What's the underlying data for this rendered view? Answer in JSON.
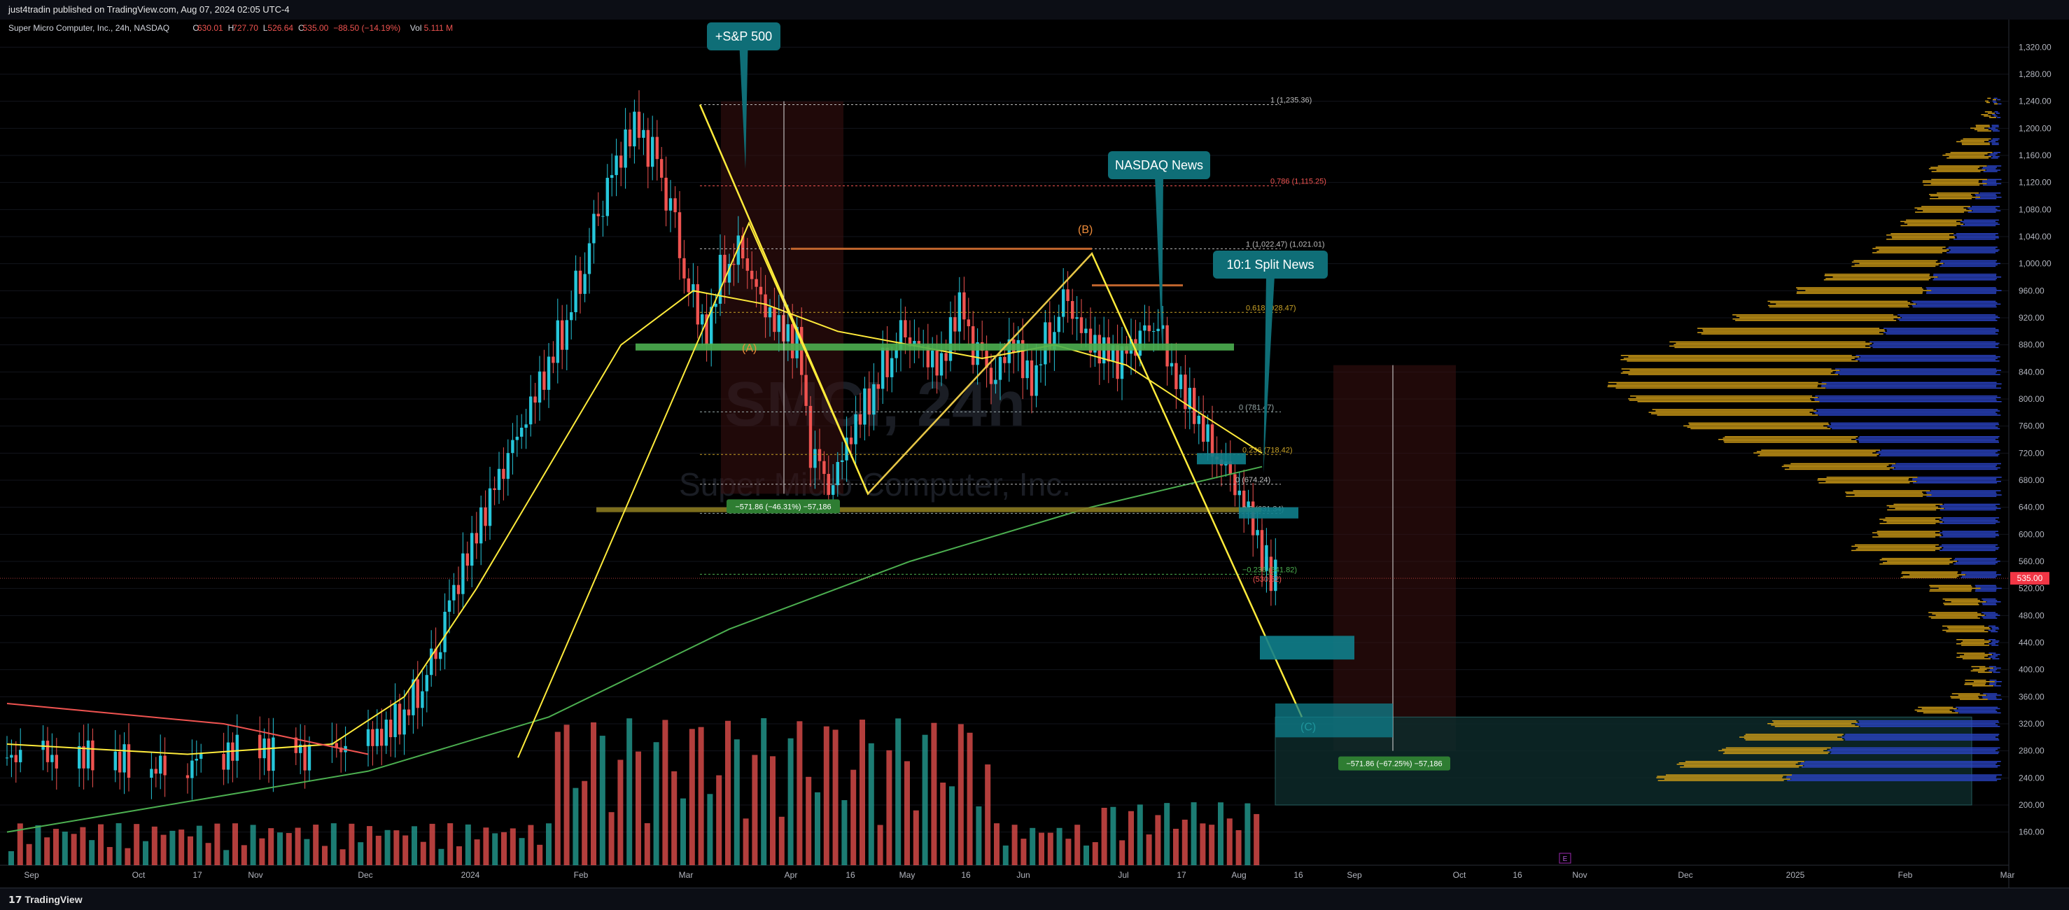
{
  "header": {
    "publish_line": "just4tradin published on TradingView.com, Aug 07, 2024 02:05 UTC-4"
  },
  "legend": {
    "symbol": "Super Micro Computer, Inc., 24h, NASDAQ",
    "o_label": "O",
    "o": "630.01",
    "h_label": "H",
    "h": "727.70",
    "l_label": "L",
    "l": "526.64",
    "c_label": "C",
    "c": "535.00",
    "change": "−88.50 (−14.19%)",
    "vol_label": "Vol",
    "vol": "5.111 M"
  },
  "colors": {
    "bg": "#000000",
    "up": "#26c6da",
    "down": "#ef5350",
    "vol_up": "#26a69a",
    "vol_down": "#ef5350",
    "fib_yellow": "#ffeb3b",
    "green_line": "#4caf50",
    "teal_label": "#0f6e77",
    "price_tag": "#f23645",
    "profile_orange": "#d4a017",
    "profile_blue": "#2b45c9"
  },
  "watermark": {
    "ticker": "SMCI, 24h",
    "name": "Super Micro Computer, Inc."
  },
  "annotations": {
    "sp500": "+S&P 500",
    "nasdaq_news": "NASDAQ News",
    "split_news": "10:1 Split News",
    "wave_a": "(A)",
    "wave_b": "(B)",
    "wave_c": "(C)",
    "measure_1": "−571.86 (−46.31%) −57,186",
    "measure_2": "−571.86 (−67.25%) −57,186",
    "fib_1": "1 (1,235.36)",
    "fib_0786": "0.786 (1,115.25)",
    "fib_1b": "1 (1,022.47)  (1,021.01)",
    "fib_0618": "0.618 (928.47)",
    "fib_0382": "0 (781.47)",
    "fib_0236": "0.236 (718.42)",
    "fib_0": "0 (674.24)",
    "fib_neg0236": "−0.236 (541.82)",
    "fib_low": "(530.52)",
    "fib_mid": "0.5 (631.34)",
    "current_price": "535.00",
    "event_e": "E"
  },
  "chart_data": {
    "type": "candlestick",
    "title": "Super Micro Computer, Inc., 24h, NASDAQ",
    "x_labels": [
      "Sep",
      "Oct",
      "17",
      "Nov",
      "Dec",
      "2024",
      "Feb",
      "Mar",
      "Apr",
      "16",
      "May",
      "16",
      "Jun",
      "Jul",
      "17",
      "Aug",
      "16",
      "Sep",
      "Oct",
      "16",
      "Nov",
      "Dec",
      "2025",
      "Feb",
      "Mar"
    ],
    "y_ticks": [
      160,
      200,
      240,
      280,
      320,
      360,
      400,
      440,
      480,
      520,
      560,
      600,
      640,
      680,
      720,
      760,
      800,
      840,
      880,
      920,
      960,
      1000,
      1040,
      1080,
      1120,
      1160,
      1200,
      1240,
      1280,
      1320
    ],
    "ylim": [
      140,
      1340
    ],
    "price_path": [
      [
        0,
        270
      ],
      [
        20,
        262
      ],
      [
        40,
        275
      ],
      [
        60,
        268
      ],
      [
        80,
        262
      ],
      [
        100,
        275
      ],
      [
        120,
        285
      ],
      [
        140,
        272
      ],
      [
        160,
        266
      ],
      [
        180,
        280
      ],
      [
        200,
        300
      ],
      [
        210,
        330
      ],
      [
        220,
        370
      ],
      [
        230,
        430
      ],
      [
        240,
        520
      ],
      [
        250,
        580
      ],
      [
        260,
        640
      ],
      [
        270,
        700
      ],
      [
        280,
        760
      ],
      [
        290,
        830
      ],
      [
        300,
        900
      ],
      [
        310,
        980
      ],
      [
        320,
        1080
      ],
      [
        330,
        1150
      ],
      [
        340,
        1200
      ],
      [
        350,
        1160
      ],
      [
        360,
        1080
      ],
      [
        370,
        960
      ],
      [
        380,
        900
      ],
      [
        390,
        1000
      ],
      [
        400,
        1030
      ],
      [
        410,
        960
      ],
      [
        420,
        910
      ],
      [
        430,
        880
      ],
      [
        440,
        700
      ],
      [
        450,
        660
      ],
      [
        460,
        740
      ],
      [
        470,
        800
      ],
      [
        480,
        860
      ],
      [
        490,
        910
      ],
      [
        500,
        880
      ],
      [
        510,
        850
      ],
      [
        520,
        930
      ],
      [
        530,
        860
      ],
      [
        540,
        820
      ],
      [
        550,
        880
      ],
      [
        560,
        830
      ],
      [
        570,
        900
      ],
      [
        580,
        960
      ],
      [
        590,
        900
      ],
      [
        600,
        870
      ],
      [
        610,
        850
      ],
      [
        620,
        880
      ],
      [
        630,
        900
      ],
      [
        640,
        830
      ],
      [
        650,
        790
      ],
      [
        660,
        740
      ],
      [
        670,
        700
      ],
      [
        680,
        640
      ],
      [
        690,
        560
      ],
      [
        695,
        535
      ]
    ],
    "volume_profile_levels": [
      240,
      260,
      280,
      300,
      320,
      340,
      360,
      380,
      400,
      420,
      440,
      460,
      480,
      500,
      520,
      540,
      560,
      580,
      600,
      620,
      640,
      660,
      680,
      700,
      720,
      740,
      760,
      780,
      800,
      820,
      840,
      860,
      880,
      900,
      920,
      940,
      960,
      980,
      1000,
      1020,
      1040,
      1060,
      1080,
      1100,
      1120,
      1140,
      1160,
      1180,
      1200,
      1220,
      1240
    ],
    "volume_profile_orange": [
      180,
      170,
      150,
      140,
      120,
      50,
      40,
      30,
      20,
      40,
      40,
      60,
      70,
      50,
      60,
      80,
      100,
      120,
      90,
      80,
      70,
      110,
      130,
      150,
      170,
      190,
      200,
      230,
      260,
      300,
      300,
      330,
      280,
      260,
      230,
      200,
      180,
      150,
      120,
      100,
      90,
      80,
      70,
      60,
      80,
      70,
      60,
      40,
      20,
      10,
      5
    ],
    "volume_profile_blue": [
      300,
      280,
      240,
      220,
      200,
      60,
      20,
      10,
      10,
      10,
      10,
      10,
      20,
      20,
      30,
      50,
      60,
      80,
      80,
      80,
      80,
      100,
      120,
      150,
      170,
      200,
      240,
      260,
      260,
      250,
      230,
      200,
      180,
      160,
      140,
      120,
      100,
      90,
      80,
      70,
      60,
      50,
      40,
      30,
      20,
      20,
      10,
      10,
      10,
      5,
      5
    ],
    "grid": true,
    "legend_position": "top-left"
  }
}
